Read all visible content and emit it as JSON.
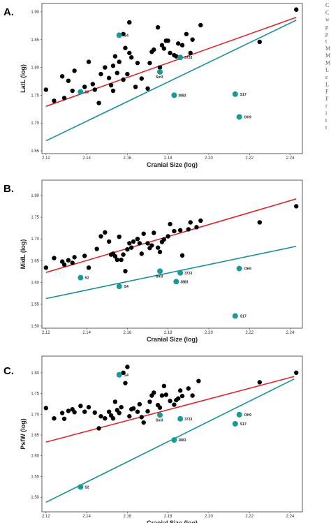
{
  "colors": {
    "human": "#000000",
    "fossil": "#1a9a9a",
    "red_line": "#e0262a",
    "teal_line": "#1a8f98"
  },
  "side_text": [
    "C",
    "C",
    "w",
    "p",
    "p",
    "t",
    "M",
    "M",
    "M",
    "L",
    "e",
    "L",
    "F",
    "F",
    "r",
    "i",
    "t",
    "t"
  ],
  "chart_data": [
    {
      "type": "scatter",
      "title": "A.",
      "xlabel": "Cranial Size (log)",
      "ylabel": "LatL (log)",
      "xlim": [
        2.118,
        2.246
      ],
      "ylim": [
        1.645,
        1.915
      ],
      "xticks": [
        "2.12",
        "2.14",
        "2.16",
        "2.18",
        "2.20",
        "2.22",
        "2.24"
      ],
      "yticks": [
        "1.65",
        "1.70",
        "1.75",
        "1.80",
        "1.85",
        "1.90"
      ],
      "ytick_values": [
        1.65,
        1.7,
        1.75,
        1.8,
        1.85,
        1.9
      ],
      "lines": [
        {
          "color": "red",
          "x": [
            2.12,
            2.243
          ],
          "y": [
            1.73,
            1.89
          ]
        },
        {
          "color": "teal",
          "x": [
            2.12,
            2.243
          ],
          "y": [
            1.668,
            1.885
          ]
        }
      ],
      "human_points": [
        [
          2.12,
          1.76
        ],
        [
          2.124,
          1.74
        ],
        [
          2.128,
          1.784
        ],
        [
          2.129,
          1.745
        ],
        [
          2.131,
          1.776
        ],
        [
          2.133,
          1.758
        ],
        [
          2.134,
          1.794
        ],
        [
          2.139,
          1.765
        ],
        [
          2.141,
          1.81
        ],
        [
          2.143,
          1.77
        ],
        [
          2.144,
          1.76
        ],
        [
          2.146,
          1.736
        ],
        [
          2.147,
          1.788
        ],
        [
          2.149,
          1.8
        ],
        [
          2.151,
          1.781
        ],
        [
          2.152,
          1.768
        ],
        [
          2.153,
          1.758
        ],
        [
          2.153,
          1.803
        ],
        [
          2.154,
          1.82
        ],
        [
          2.155,
          1.79
        ],
        [
          2.156,
          1.81
        ],
        [
          2.158,
          1.86
        ],
        [
          2.158,
          1.778
        ],
        [
          2.159,
          1.835
        ],
        [
          2.16,
          1.788
        ],
        [
          2.161,
          1.881
        ],
        [
          2.161,
          1.826
        ],
        [
          2.162,
          1.818
        ],
        [
          2.164,
          1.765
        ],
        [
          2.165,
          1.808
        ],
        [
          2.167,
          1.78
        ],
        [
          2.17,
          1.762
        ],
        [
          2.171,
          1.808
        ],
        [
          2.172,
          1.828
        ],
        [
          2.173,
          1.832
        ],
        [
          2.175,
          1.872
        ],
        [
          2.176,
          1.8
        ],
        [
          2.177,
          1.84
        ],
        [
          2.178,
          1.834
        ],
        [
          2.179,
          1.848
        ],
        [
          2.18,
          1.848
        ],
        [
          2.181,
          1.826
        ],
        [
          2.183,
          1.822
        ],
        [
          2.184,
          1.82
        ],
        [
          2.185,
          1.843
        ],
        [
          2.187,
          1.84
        ],
        [
          2.189,
          1.86
        ],
        [
          2.191,
          1.826
        ],
        [
          2.192,
          1.85
        ],
        [
          2.196,
          1.876
        ],
        [
          2.225,
          1.846
        ],
        [
          2.243,
          1.904
        ]
      ],
      "fossil_points": [
        {
          "label": "S4",
          "x": 2.156,
          "y": 1.858
        },
        {
          "label": "S2",
          "x": 2.137,
          "y": 1.756
        },
        {
          "label": "Sm3",
          "x": 2.176,
          "y": 1.792
        },
        {
          "label": "3733",
          "x": 2.186,
          "y": 1.818
        },
        {
          "label": "3883",
          "x": 2.183,
          "y": 1.75
        },
        {
          "label": "S17",
          "x": 2.213,
          "y": 1.752
        },
        {
          "label": "OH9",
          "x": 2.215,
          "y": 1.711
        }
      ]
    },
    {
      "type": "scatter",
      "title": "B.",
      "xlabel": "Cranial Size (log)",
      "ylabel": "MidL (log)",
      "xlim": [
        2.118,
        2.246
      ],
      "ylim": [
        1.495,
        1.835
      ],
      "xticks": [
        "2.12",
        "2.14",
        "2.16",
        "2.18",
        "2.20",
        "2.22",
        "2.24"
      ],
      "yticks": [
        "1.50",
        "1.55",
        "1.60",
        "1.65",
        "1.70",
        "1.75",
        "1.80"
      ],
      "ytick_values": [
        1.5,
        1.55,
        1.6,
        1.65,
        1.7,
        1.75,
        1.8
      ],
      "lines": [
        {
          "color": "red",
          "x": [
            2.12,
            2.243
          ],
          "y": [
            1.623,
            1.792
          ]
        },
        {
          "color": "teal",
          "x": [
            2.12,
            2.243
          ],
          "y": [
            1.563,
            1.683
          ]
        }
      ],
      "human_points": [
        [
          2.12,
          1.634
        ],
        [
          2.124,
          1.656
        ],
        [
          2.128,
          1.648
        ],
        [
          2.129,
          1.641
        ],
        [
          2.131,
          1.651
        ],
        [
          2.133,
          1.645
        ],
        [
          2.134,
          1.658
        ],
        [
          2.139,
          1.661
        ],
        [
          2.141,
          1.634
        ],
        [
          2.145,
          1.677
        ],
        [
          2.147,
          1.706
        ],
        [
          2.149,
          1.715
        ],
        [
          2.151,
          1.694
        ],
        [
          2.152,
          1.664
        ],
        [
          2.153,
          1.666
        ],
        [
          2.154,
          1.66
        ],
        [
          2.155,
          1.652
        ],
        [
          2.156,
          1.705
        ],
        [
          2.157,
          1.652
        ],
        [
          2.158,
          1.664
        ],
        [
          2.159,
          1.626
        ],
        [
          2.16,
          1.676
        ],
        [
          2.161,
          1.69
        ],
        [
          2.162,
          1.68
        ],
        [
          2.163,
          1.694
        ],
        [
          2.165,
          1.7
        ],
        [
          2.166,
          1.69
        ],
        [
          2.167,
          1.666
        ],
        [
          2.168,
          1.712
        ],
        [
          2.17,
          1.69
        ],
        [
          2.171,
          1.679
        ],
        [
          2.172,
          1.685
        ],
        [
          2.173,
          1.714
        ],
        [
          2.175,
          1.68
        ],
        [
          2.176,
          1.67
        ],
        [
          2.177,
          1.693
        ],
        [
          2.178,
          1.699
        ],
        [
          2.18,
          1.706
        ],
        [
          2.181,
          1.734
        ],
        [
          2.183,
          1.718
        ],
        [
          2.186,
          1.72
        ],
        [
          2.187,
          1.662
        ],
        [
          2.19,
          1.722
        ],
        [
          2.191,
          1.738
        ],
        [
          2.194,
          1.727
        ],
        [
          2.196,
          1.742
        ],
        [
          2.225,
          1.738
        ],
        [
          2.243,
          1.775
        ]
      ],
      "fossil_points": [
        {
          "label": "S2",
          "x": 2.137,
          "y": 1.611
        },
        {
          "label": "S4",
          "x": 2.156,
          "y": 1.591
        },
        {
          "label": "Sm3",
          "x": 2.176,
          "y": 1.626
        },
        {
          "label": "3733",
          "x": 2.186,
          "y": 1.622
        },
        {
          "label": "3883",
          "x": 2.184,
          "y": 1.602
        },
        {
          "label": "OH9",
          "x": 2.215,
          "y": 1.632
        },
        {
          "label": "S17",
          "x": 2.213,
          "y": 1.523
        }
      ]
    },
    {
      "type": "scatter",
      "title": "C.",
      "xlabel": "Cranial Size (log)",
      "ylabel": "PsfW (log)",
      "xlim": [
        2.118,
        2.246
      ],
      "ylim": [
        1.465,
        1.84
      ],
      "xticks": [
        "2.12",
        "2.14",
        "2.16",
        "2.18",
        "2.20",
        "2.22",
        "2.24"
      ],
      "yticks": [
        "1.50",
        "1.55",
        "1.60",
        "1.65",
        "1.70",
        "1.75",
        "1.80"
      ],
      "ytick_values": [
        1.5,
        1.55,
        1.6,
        1.65,
        1.7,
        1.75,
        1.8
      ],
      "lines": [
        {
          "color": "red",
          "x": [
            2.12,
            2.242
          ],
          "y": [
            1.633,
            1.791
          ]
        },
        {
          "color": "teal",
          "x": [
            2.12,
            2.242
          ],
          "y": [
            1.488,
            1.785
          ]
        }
      ],
      "human_points": [
        [
          2.12,
          1.715
        ],
        [
          2.124,
          1.69
        ],
        [
          2.128,
          1.703
        ],
        [
          2.129,
          1.689
        ],
        [
          2.131,
          1.708
        ],
        [
          2.133,
          1.712
        ],
        [
          2.134,
          1.705
        ],
        [
          2.137,
          1.72
        ],
        [
          2.139,
          1.706
        ],
        [
          2.141,
          1.717
        ],
        [
          2.144,
          1.704
        ],
        [
          2.146,
          1.666
        ],
        [
          2.147,
          1.695
        ],
        [
          2.149,
          1.69
        ],
        [
          2.151,
          1.706
        ],
        [
          2.152,
          1.697
        ],
        [
          2.153,
          1.69
        ],
        [
          2.154,
          1.73
        ],
        [
          2.155,
          1.71
        ],
        [
          2.156,
          1.703
        ],
        [
          2.157,
          1.717
        ],
        [
          2.158,
          1.8
        ],
        [
          2.159,
          1.775
        ],
        [
          2.16,
          1.814
        ],
        [
          2.161,
          1.695
        ],
        [
          2.162,
          1.712
        ],
        [
          2.163,
          1.714
        ],
        [
          2.165,
          1.706
        ],
        [
          2.166,
          1.724
        ],
        [
          2.167,
          1.693
        ],
        [
          2.168,
          1.68
        ],
        [
          2.17,
          1.707
        ],
        [
          2.171,
          1.73
        ],
        [
          2.172,
          1.745
        ],
        [
          2.173,
          1.752
        ],
        [
          2.175,
          1.722
        ],
        [
          2.176,
          1.716
        ],
        [
          2.177,
          1.745
        ],
        [
          2.178,
          1.768
        ],
        [
          2.179,
          1.747
        ],
        [
          2.181,
          1.732
        ],
        [
          2.183,
          1.723
        ],
        [
          2.184,
          1.734
        ],
        [
          2.185,
          1.738
        ],
        [
          2.186,
          1.757
        ],
        [
          2.187,
          1.744
        ],
        [
          2.19,
          1.762
        ],
        [
          2.192,
          1.745
        ],
        [
          2.195,
          1.78
        ],
        [
          2.225,
          1.777
        ],
        [
          2.243,
          1.8
        ]
      ],
      "fossil_points": [
        {
          "label": "S4",
          "x": 2.156,
          "y": 1.795
        },
        {
          "label": "S2",
          "x": 2.137,
          "y": 1.525
        },
        {
          "label": "Sm3",
          "x": 2.176,
          "y": 1.698
        },
        {
          "label": "3733",
          "x": 2.186,
          "y": 1.689
        },
        {
          "label": "3883",
          "x": 2.183,
          "y": 1.638
        },
        {
          "label": "OH9",
          "x": 2.215,
          "y": 1.699
        },
        {
          "label": "S17",
          "x": 2.213,
          "y": 1.677
        }
      ]
    }
  ]
}
